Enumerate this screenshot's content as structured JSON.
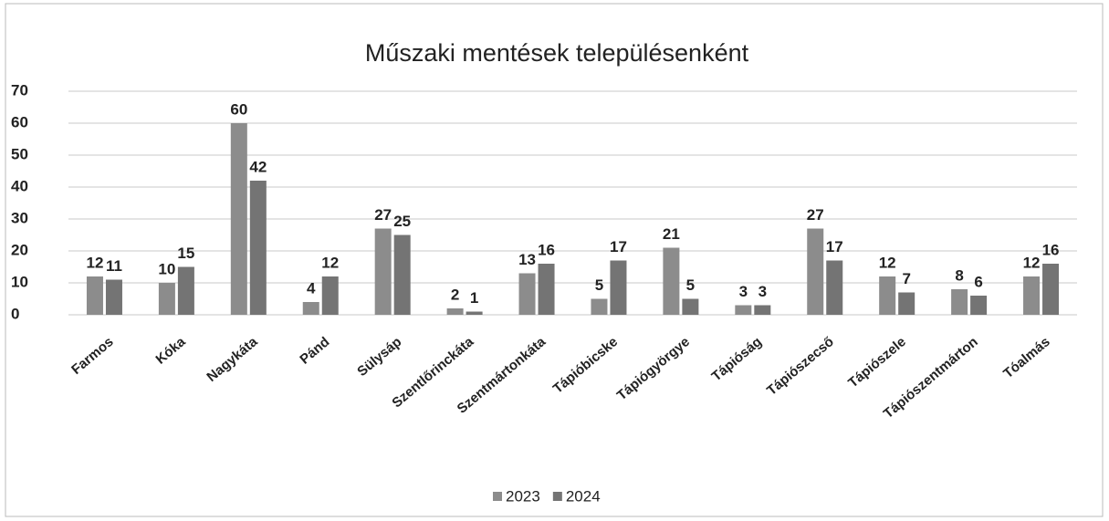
{
  "chart_data": {
    "type": "bar",
    "title": "Műszaki mentések településenként",
    "categories": [
      "Farmos",
      "Kóka",
      "Nagykáta",
      "Pánd",
      "Sülysáp",
      "Szentlőrinckáta",
      "Szentmártonkáta",
      "Tápióbicske",
      "Tápiógyörgye",
      "Tápióság",
      "Tápiószecső",
      "Tápiószele",
      "Tápiószentmárton",
      "Tóalmás"
    ],
    "series": [
      {
        "name": "2023",
        "color": "#8c8c8c",
        "values": [
          12,
          10,
          60,
          4,
          27,
          2,
          13,
          5,
          21,
          3,
          27,
          12,
          8,
          12
        ]
      },
      {
        "name": "2024",
        "color": "#747474",
        "values": [
          11,
          15,
          42,
          12,
          25,
          1,
          16,
          17,
          5,
          3,
          17,
          7,
          6,
          16
        ]
      }
    ],
    "ylim": [
      0,
      70
    ],
    "yticks": [
      0,
      10,
      20,
      30,
      40,
      50,
      60,
      70
    ],
    "grid": true,
    "legend": "bottom"
  }
}
